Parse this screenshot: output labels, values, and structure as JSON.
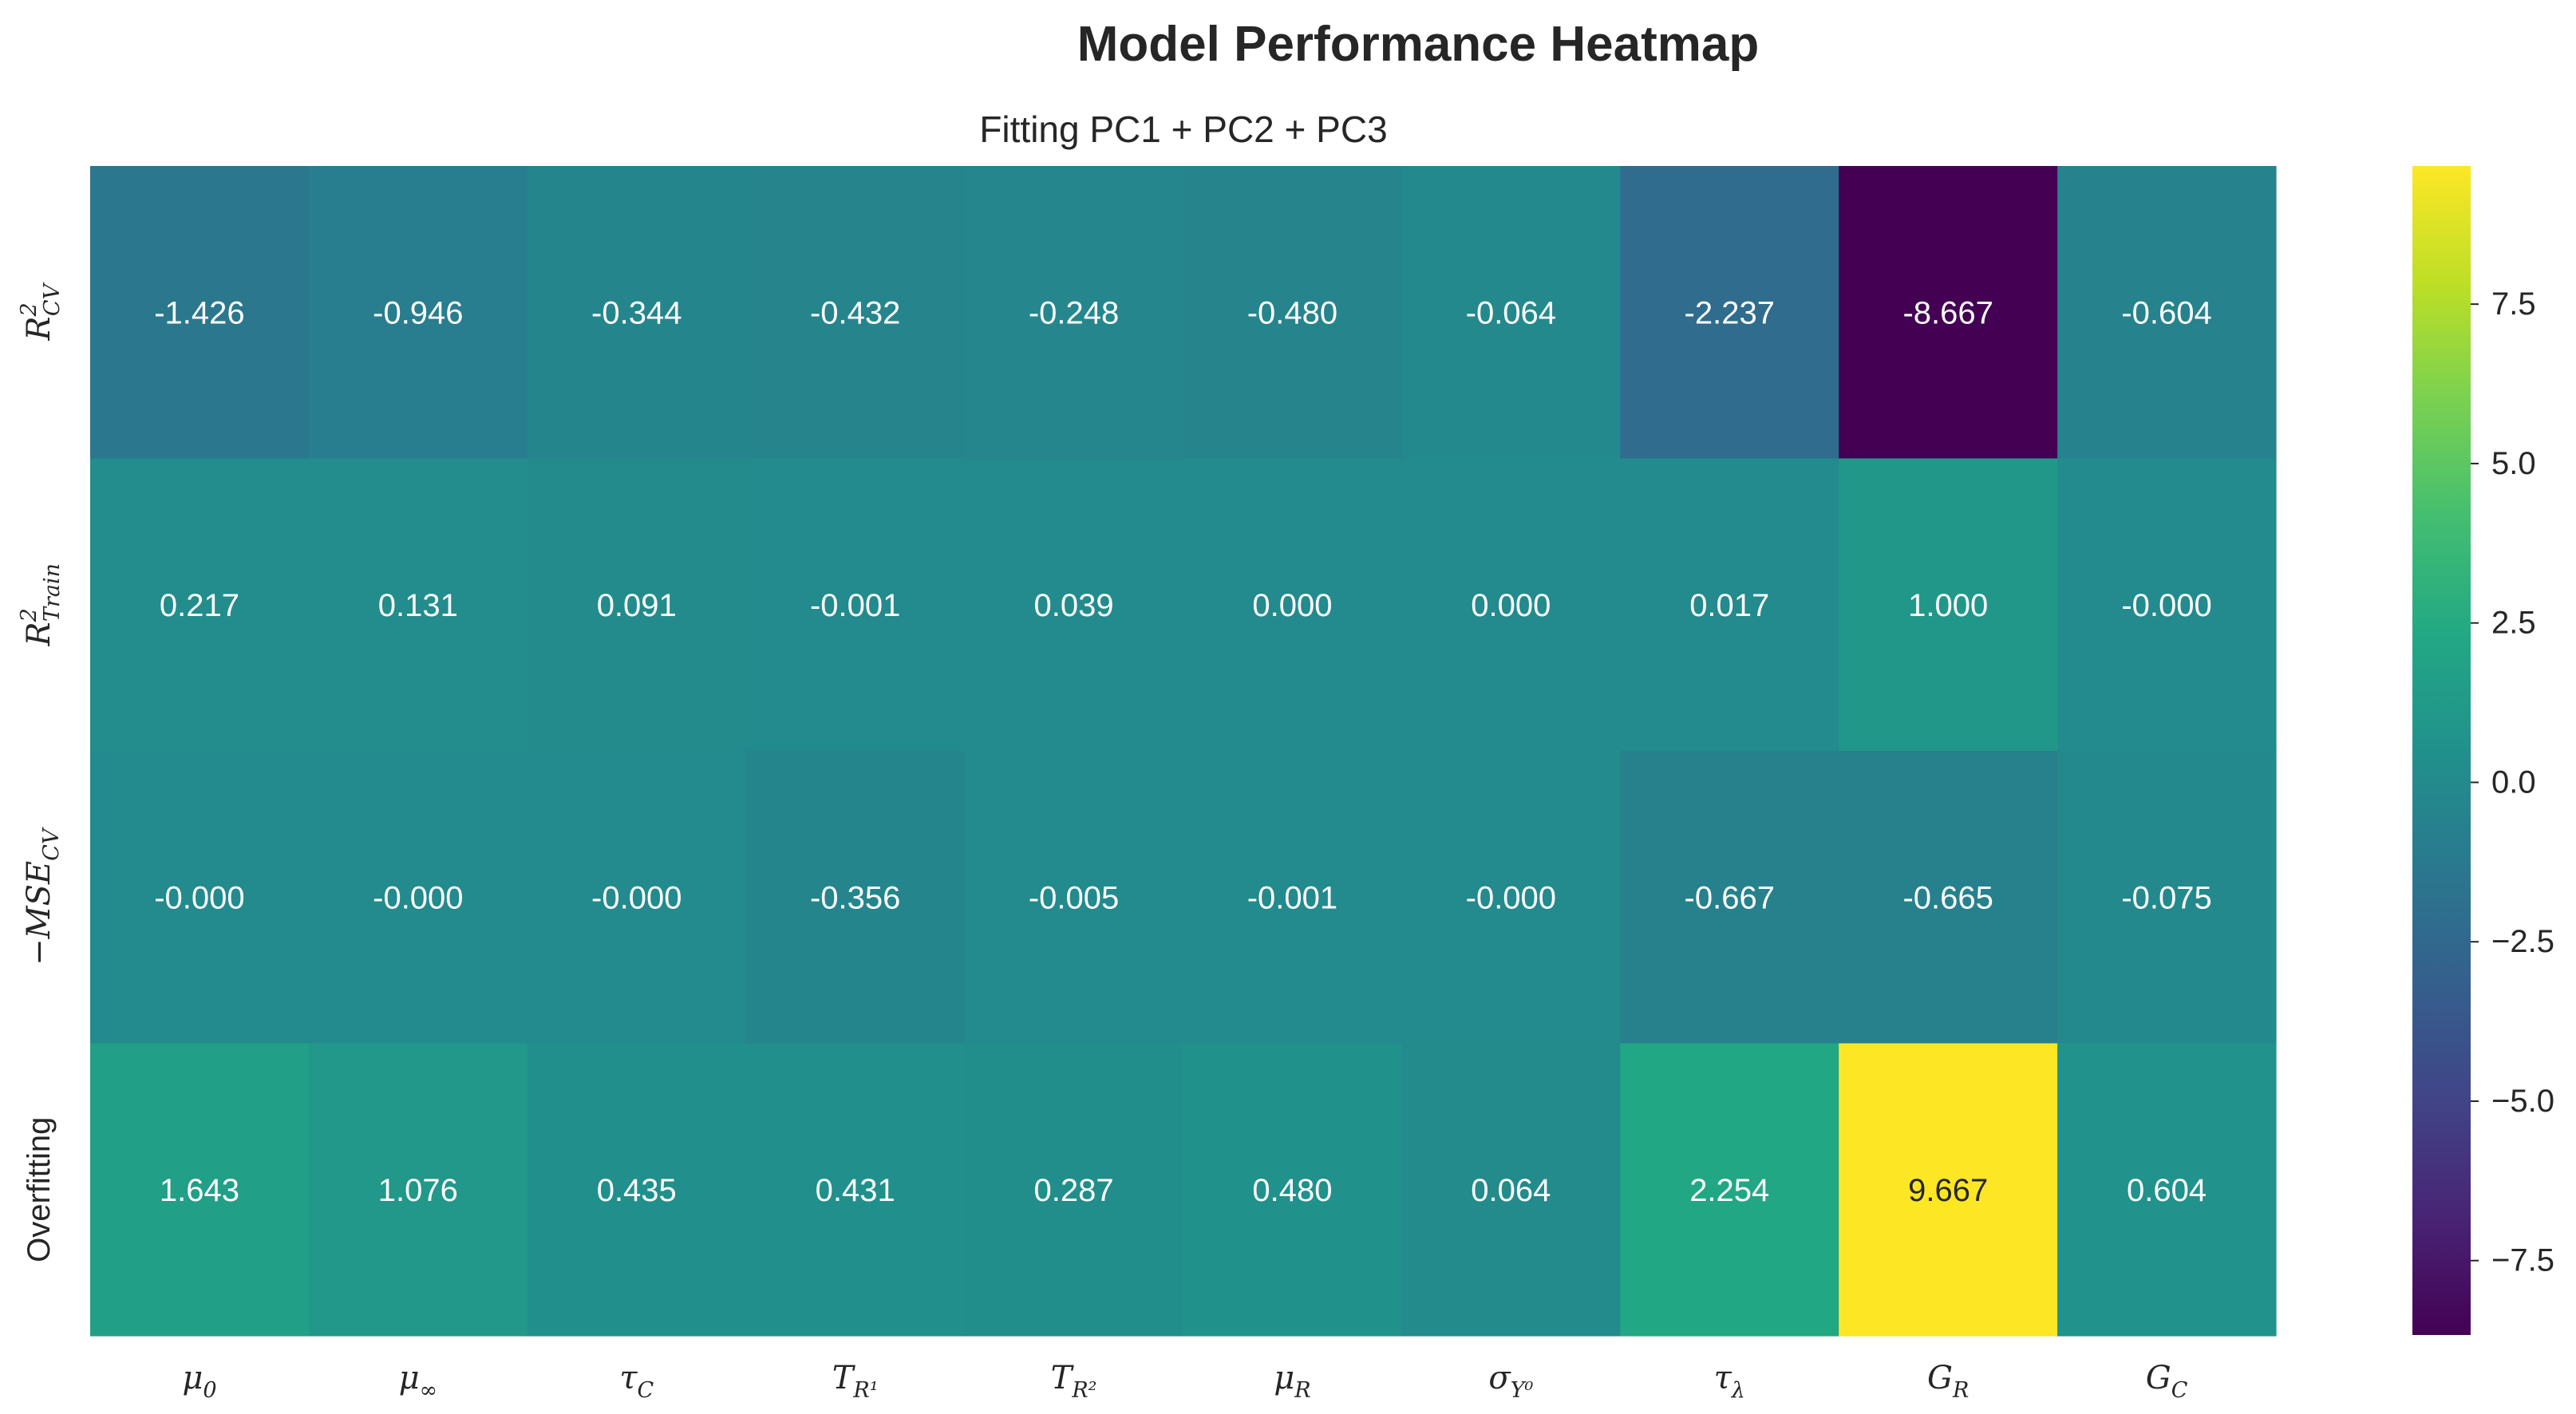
{
  "chart_data": {
    "type": "heatmap",
    "title": "Model Performance Heatmap",
    "subtitle": "Fitting PC1 + PC2 + PC3",
    "columns": [
      "μ_0",
      "μ_∞",
      "τ_C",
      "T_{R¹}",
      "T_{R²}",
      "μ_R",
      "σ_{Y⁰}",
      "τ_λ",
      "G_R",
      "G_C"
    ],
    "rows": [
      "R²_CV",
      "R²_Train",
      "−MSE_CV",
      "Overfitting"
    ],
    "values": [
      [
        -1.426,
        -0.946,
        -0.344,
        -0.432,
        -0.248,
        -0.48,
        -0.064,
        -2.237,
        -8.667,
        -0.604
      ],
      [
        0.217,
        0.131,
        0.091,
        -0.001,
        0.039,
        0.0,
        0.0,
        0.017,
        1.0,
        -0.0
      ],
      [
        -0.0,
        -0.0,
        -0.0,
        -0.356,
        -0.005,
        -0.001,
        -0.0,
        -0.667,
        -0.665,
        -0.075
      ],
      [
        1.643,
        1.076,
        0.435,
        0.431,
        0.287,
        0.48,
        0.064,
        2.254,
        9.667,
        0.604
      ]
    ],
    "value_labels": [
      [
        "-1.426",
        "-0.946",
        "-0.344",
        "-0.432",
        "-0.248",
        "-0.480",
        "-0.064",
        "-2.237",
        "-8.667",
        "-0.604"
      ],
      [
        "0.217",
        "0.131",
        "0.091",
        "-0.001",
        "0.039",
        "0.000",
        "0.000",
        "0.017",
        "1.000",
        "-0.000"
      ],
      [
        "-0.000",
        "-0.000",
        "-0.000",
        "-0.356",
        "-0.005",
        "-0.001",
        "-0.000",
        "-0.667",
        "-0.665",
        "-0.075"
      ],
      [
        "1.643",
        "1.076",
        "0.435",
        "0.431",
        "0.287",
        "0.480",
        "0.064",
        "2.254",
        "9.667",
        "0.604"
      ]
    ],
    "colormap": "viridis",
    "vmin": -8.667,
    "vmax": 9.667,
    "colorbar_ticks": [
      {
        "value": 7.5,
        "label": "7.5"
      },
      {
        "value": 5.0,
        "label": "5.0"
      },
      {
        "value": 2.5,
        "label": "2.5"
      },
      {
        "value": 0.0,
        "label": "0.0"
      },
      {
        "value": -2.5,
        "label": "−2.5"
      },
      {
        "value": -5.0,
        "label": "−5.0"
      },
      {
        "value": -7.5,
        "label": "−7.5"
      }
    ],
    "grid": false,
    "legend": "colorbar-right"
  }
}
